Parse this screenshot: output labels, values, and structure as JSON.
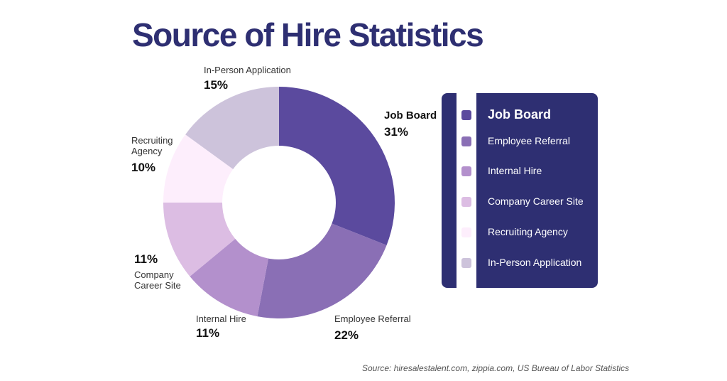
{
  "chart_data": {
    "type": "donut",
    "title": "Source of Hire Statistics",
    "categories": [
      "Job Board",
      "Employee Referral",
      "Internal Hire",
      "Company Career Site",
      "Recruiting Agency",
      "In-Person Application"
    ],
    "values": [
      31,
      22,
      11,
      11,
      10,
      15
    ],
    "value_labels": [
      "31%",
      "22%",
      "11%",
      "11%",
      "10%",
      "15%"
    ],
    "colors": [
      "#5b4a9e",
      "#8a6fb5",
      "#b390cc",
      "#dcbde3",
      "#fdeefc",
      "#cdc3db"
    ],
    "legend": "right",
    "source": "Source: hiresalestalent.com, zippia.com, US Bureau of Labor Statistics"
  }
}
